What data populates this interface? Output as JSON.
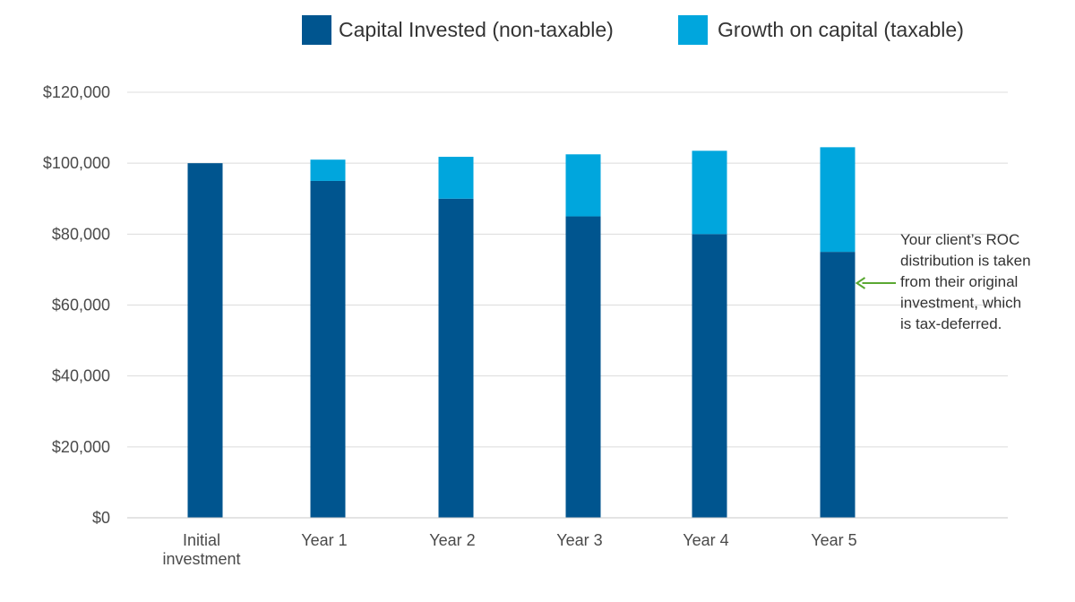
{
  "chart_data": {
    "type": "bar",
    "stacked": true,
    "categories": [
      [
        "Initial",
        "investment"
      ],
      [
        "Year 1"
      ],
      [
        "Year 2"
      ],
      [
        "Year 3"
      ],
      [
        "Year 4"
      ],
      [
        "Year 5"
      ]
    ],
    "series": [
      {
        "name": "Capital Invested (non-taxable)",
        "color": "#00558f",
        "values": [
          100000,
          95000,
          90000,
          85000,
          80000,
          75000
        ]
      },
      {
        "name": "Growth on capital (taxable)",
        "color": "#00a6dd",
        "values": [
          0,
          6000,
          11800,
          17500,
          23500,
          29500
        ]
      }
    ],
    "ylim": [
      0,
      120000
    ],
    "yticks": [
      0,
      20000,
      40000,
      60000,
      80000,
      100000,
      120000
    ],
    "ytick_labels": [
      "$0",
      "$20,000",
      "$40,000",
      "$60,000",
      "$80,000",
      "$100,000",
      "$120,000"
    ],
    "grid": true,
    "legend_position": "top-right",
    "annotation": {
      "lines": [
        "Your client’s ROC",
        "distribution is taken",
        "from their original",
        "investment, which",
        "is tax-deferred."
      ],
      "arrow_color": "#5aa832",
      "points_to_category": 5,
      "points_to_value": 66000
    }
  }
}
